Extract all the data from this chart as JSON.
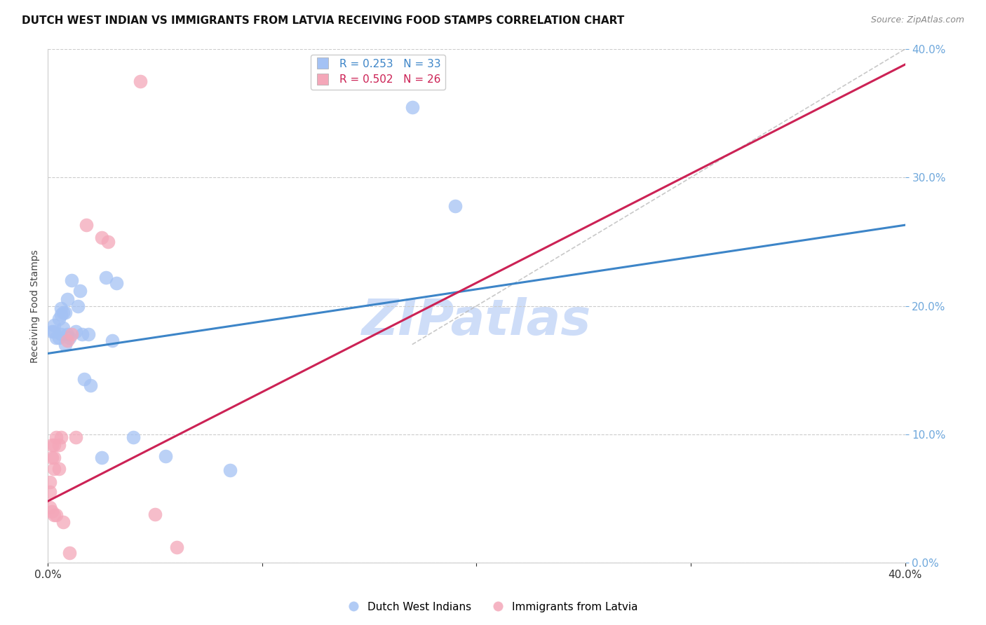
{
  "title": "DUTCH WEST INDIAN VS IMMIGRANTS FROM LATVIA RECEIVING FOOD STAMPS CORRELATION CHART",
  "source": "Source: ZipAtlas.com",
  "ylabel": "Receiving Food Stamps",
  "ytick_values": [
    0.0,
    0.1,
    0.2,
    0.3,
    0.4
  ],
  "xlim": [
    0.0,
    0.4
  ],
  "ylim": [
    0.0,
    0.4
  ],
  "blue_label": "Dutch West Indians",
  "pink_label": "Immigrants from Latvia",
  "blue_R": "R = 0.253",
  "blue_N": "N = 33",
  "pink_R": "R = 0.502",
  "pink_N": "N = 26",
  "blue_color": "#a4c2f4",
  "pink_color": "#f4a7b9",
  "blue_line_color": "#3d85c8",
  "pink_line_color": "#cc2255",
  "blue_tick_color": "#6fa8dc",
  "watermark": "ZIPatlas",
  "watermark_color": "#c9daf8",
  "background_color": "#ffffff",
  "grid_color": "#cccccc",
  "blue_scatter_x": [
    0.002,
    0.003,
    0.003,
    0.004,
    0.005,
    0.005,
    0.006,
    0.006,
    0.006,
    0.007,
    0.007,
    0.008,
    0.008,
    0.009,
    0.009,
    0.01,
    0.011,
    0.013,
    0.014,
    0.015,
    0.016,
    0.017,
    0.019,
    0.02,
    0.025,
    0.027,
    0.03,
    0.032,
    0.04,
    0.055,
    0.085,
    0.17,
    0.19
  ],
  "blue_scatter_y": [
    0.18,
    0.18,
    0.185,
    0.175,
    0.175,
    0.19,
    0.178,
    0.193,
    0.198,
    0.183,
    0.195,
    0.17,
    0.195,
    0.178,
    0.205,
    0.175,
    0.22,
    0.18,
    0.2,
    0.212,
    0.178,
    0.143,
    0.178,
    0.138,
    0.082,
    0.222,
    0.173,
    0.218,
    0.098,
    0.083,
    0.072,
    0.355,
    0.278
  ],
  "pink_scatter_x": [
    0.001,
    0.001,
    0.001,
    0.002,
    0.002,
    0.002,
    0.003,
    0.003,
    0.003,
    0.003,
    0.004,
    0.004,
    0.005,
    0.005,
    0.006,
    0.007,
    0.009,
    0.01,
    0.011,
    0.013,
    0.018,
    0.025,
    0.028,
    0.043,
    0.05,
    0.06
  ],
  "pink_scatter_y": [
    0.063,
    0.043,
    0.055,
    0.04,
    0.082,
    0.092,
    0.082,
    0.037,
    0.073,
    0.092,
    0.098,
    0.037,
    0.073,
    0.092,
    0.098,
    0.032,
    0.173,
    0.008,
    0.178,
    0.098,
    0.263,
    0.253,
    0.25,
    0.375,
    0.038,
    0.012
  ],
  "blue_trend_x": [
    0.0,
    0.4
  ],
  "blue_trend_y": [
    0.163,
    0.263
  ],
  "pink_trend_x": [
    0.0,
    0.4
  ],
  "pink_trend_y": [
    0.048,
    0.388
  ],
  "ref_line_x": [
    0.17,
    0.4
  ],
  "ref_line_y": [
    0.17,
    0.4
  ],
  "title_fontsize": 11,
  "source_fontsize": 9,
  "axis_label_fontsize": 10,
  "tick_fontsize": 11,
  "legend_fontsize": 11,
  "watermark_fontsize": 52
}
